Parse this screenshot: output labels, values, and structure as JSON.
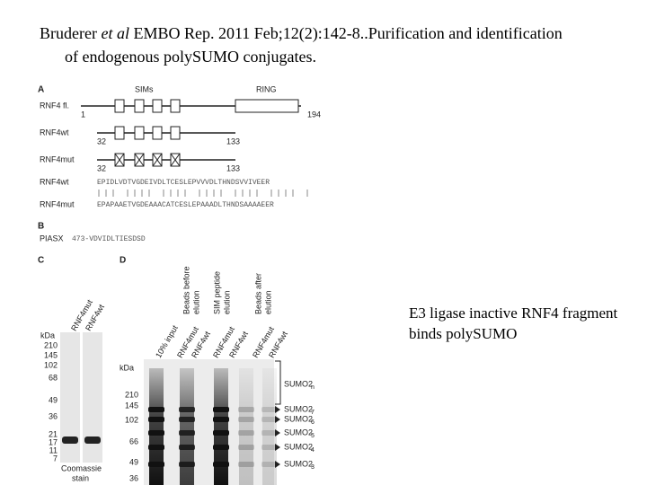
{
  "header": {
    "author": "Bruderer",
    "etal": "et al",
    "citation": "EMBO Rep. 2011 Feb;12(2):142-8..Purification and identification of endogenous polySUMO conjugates."
  },
  "caption": "E3 ligase inactive RNF4 fragment binds polySUMO",
  "figure": {
    "panel_a": {
      "label": "A",
      "sims": "SIMs",
      "ring": "RING",
      "constructs": [
        {
          "name": "RNF4 fl.",
          "start": "1",
          "end": "194"
        },
        {
          "name": "RNF4wt",
          "start": "32",
          "end": "133"
        },
        {
          "name": "RNF4mut",
          "start": "32",
          "end": "133"
        }
      ],
      "sequences": [
        {
          "name": "RNF4wt",
          "seq": "EPIDLVDTVGDEIVDLTCESLEPVVVDLTHNDSVVIVEER"
        },
        {
          "name": "RNF4mut",
          "seq": "EPAPAAETVGDEAAACATCESLEPAAADLTHNDSAAAAEER"
        }
      ]
    },
    "panel_b": {
      "label": "B",
      "name": "PIASX",
      "seq": "473-VDVIDLTIESDSD"
    },
    "panel_c": {
      "label": "C",
      "kda": "kDa",
      "markers": [
        "210",
        "145",
        "102",
        "68",
        "49",
        "36",
        "21",
        "17",
        "11",
        "7"
      ],
      "lanes": [
        "RNF4mut",
        "RNF4wt"
      ],
      "stain": [
        "Coomassie",
        "stain"
      ]
    },
    "panel_d": {
      "label": "D",
      "groups": [
        [
          "Beads before",
          "elution"
        ],
        [
          "SIM peptide",
          "elution"
        ],
        [
          "Beads after",
          "elution"
        ]
      ],
      "lanes": [
        "10% input",
        "RNF4mut",
        "RNF4wt",
        "RNF4mut",
        "RNF4wt",
        "RNF4mut",
        "RNF4wt"
      ],
      "kda": "kDa",
      "markers": [
        "210",
        "145",
        "102",
        "66",
        "49",
        "36"
      ],
      "bands": [
        {
          "name": "SUMO2",
          "sub": "n"
        },
        {
          "name": "SUMO2",
          "sub": "7"
        },
        {
          "name": "SUMO2",
          "sub": "6"
        },
        {
          "name": "SUMO2",
          "sub": "5"
        },
        {
          "name": "SUMO2",
          "sub": "4"
        },
        {
          "name": "SUMO2",
          "sub": "3"
        }
      ]
    }
  }
}
